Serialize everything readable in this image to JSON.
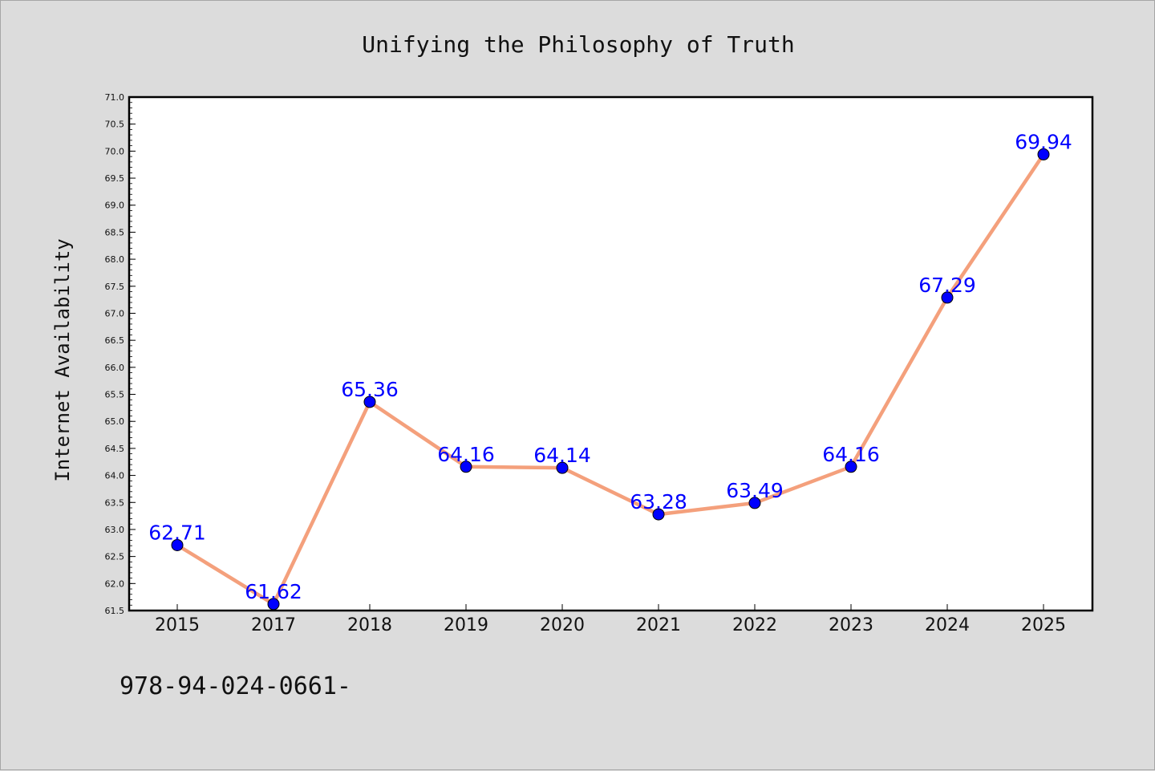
{
  "chart_data": {
    "type": "line",
    "title": "Unifying the Philosophy of Truth",
    "xlabel": "",
    "ylabel": "Internet Availability",
    "categories": [
      "2015",
      "2017",
      "2018",
      "2019",
      "2020",
      "2021",
      "2022",
      "2023",
      "2024",
      "2025"
    ],
    "series": [
      {
        "values": [
          62.71,
          61.62,
          65.36,
          64.16,
          64.14,
          63.28,
          63.49,
          64.16,
          67.29,
          69.94
        ],
        "data_labels": [
          "62.71",
          "61.62",
          "65.36",
          "64.16",
          "64.14",
          "63.28",
          "63.49",
          "64.16",
          "67.29",
          "69.94"
        ]
      }
    ],
    "ylim": [
      61.5,
      71.0
    ],
    "yticks": [
      "61.5",
      "62.0",
      "62.5",
      "63.0",
      "63.5",
      "64.0",
      "64.5",
      "65.0",
      "65.5",
      "66.0",
      "66.5",
      "67.0",
      "67.5",
      "68.0",
      "68.5",
      "69.0",
      "69.5",
      "70.0",
      "70.5",
      "71.0"
    ],
    "grid": false,
    "legend": "none",
    "colors": {
      "line": "#f4a07c",
      "marker": "#0000ff",
      "data_label": "#0000ff",
      "plot_background": "#ffffff",
      "figure_background": "#dcdcdc"
    }
  },
  "footer_text": "978-94-024-0661-"
}
